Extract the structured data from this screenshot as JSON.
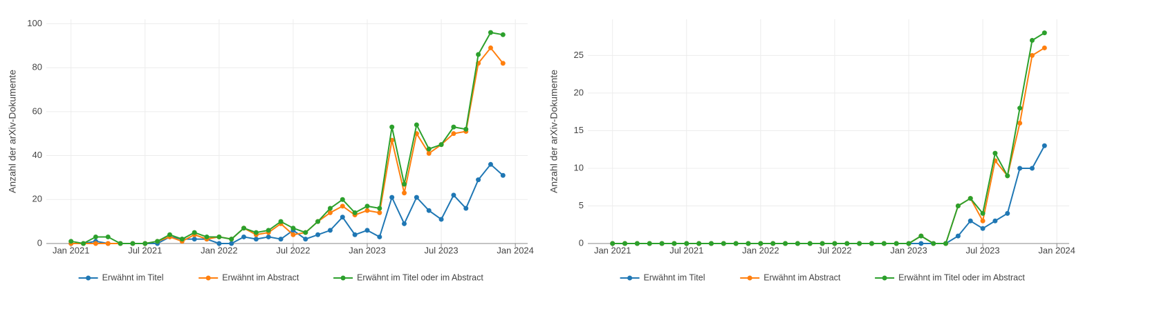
{
  "chart_data": [
    {
      "type": "line",
      "ylabel": "Anzahl der arXiv-Dokumente",
      "x": [
        "2021-01",
        "2021-02",
        "2021-03",
        "2021-04",
        "2021-05",
        "2021-06",
        "2021-07",
        "2021-08",
        "2021-09",
        "2021-10",
        "2021-11",
        "2021-12",
        "2022-01",
        "2022-02",
        "2022-03",
        "2022-04",
        "2022-05",
        "2022-06",
        "2022-07",
        "2022-08",
        "2022-09",
        "2022-10",
        "2022-11",
        "2022-12",
        "2023-01",
        "2023-02",
        "2023-03",
        "2023-04",
        "2023-05",
        "2023-06",
        "2023-07",
        "2023-08",
        "2023-09",
        "2023-10",
        "2023-11",
        "2023-12"
      ],
      "series": [
        {
          "name": "Erwähnt im Titel",
          "color": "#1f77b4",
          "values": [
            0,
            0,
            1,
            0,
            0,
            0,
            0,
            0,
            3,
            2,
            2,
            2,
            0,
            0,
            3,
            2,
            3,
            2,
            6,
            2,
            4,
            6,
            12,
            4,
            6,
            3,
            21,
            9,
            21,
            15,
            11,
            22,
            16,
            29,
            36,
            31
          ]
        },
        {
          "name": "Erwähnt im Abstract",
          "color": "#ff7f0e",
          "values": [
            0,
            0,
            0,
            0,
            0,
            0,
            0,
            1,
            3,
            1,
            4,
            2,
            3,
            2,
            7,
            4,
            5,
            9,
            4,
            5,
            10,
            14,
            17,
            13,
            15,
            14,
            47,
            23,
            50,
            41,
            45,
            50,
            51,
            82,
            89,
            82
          ]
        },
        {
          "name": "Erwähnt im Titel oder im Abstract",
          "color": "#2ca02c",
          "values": [
            1,
            0,
            3,
            3,
            0,
            0,
            0,
            1,
            4,
            2,
            5,
            3,
            3,
            2,
            7,
            5,
            6,
            10,
            7,
            5,
            10,
            16,
            20,
            14,
            17,
            16,
            53,
            27,
            54,
            43,
            45,
            53,
            52,
            86,
            96,
            95
          ]
        }
      ],
      "xlim": [
        "2020-11",
        "2024-02"
      ],
      "xticks": [
        {
          "value": "2021-01",
          "label": "Jan 2021"
        },
        {
          "value": "2021-07",
          "label": "Jul 2021"
        },
        {
          "value": "2022-01",
          "label": "Jan 2022"
        },
        {
          "value": "2022-07",
          "label": "Jul 2022"
        },
        {
          "value": "2023-01",
          "label": "Jan 2023"
        },
        {
          "value": "2023-07",
          "label": "Jul 2023"
        },
        {
          "value": "2024-01",
          "label": "Jan 2024"
        }
      ],
      "ylim": [
        0,
        102
      ],
      "yticks": [
        0,
        20,
        40,
        60,
        80,
        100
      ],
      "grid": true,
      "legend": "bottom"
    },
    {
      "type": "line",
      "ylabel": "Anzahl der arXiv-Dokumente",
      "x": [
        "2021-01",
        "2021-02",
        "2021-03",
        "2021-04",
        "2021-05",
        "2021-06",
        "2021-07",
        "2021-08",
        "2021-09",
        "2021-10",
        "2021-11",
        "2021-12",
        "2022-01",
        "2022-02",
        "2022-03",
        "2022-04",
        "2022-05",
        "2022-06",
        "2022-07",
        "2022-08",
        "2022-09",
        "2022-10",
        "2022-11",
        "2022-12",
        "2023-01",
        "2023-02",
        "2023-03",
        "2023-04",
        "2023-05",
        "2023-06",
        "2023-07",
        "2023-08",
        "2023-09",
        "2023-10",
        "2023-11",
        "2023-12"
      ],
      "series": [
        {
          "name": "Erwähnt im Titel",
          "color": "#1f77b4",
          "values": [
            0,
            0,
            0,
            0,
            0,
            0,
            0,
            0,
            0,
            0,
            0,
            0,
            0,
            0,
            0,
            0,
            0,
            0,
            0,
            0,
            0,
            0,
            0,
            0,
            0,
            0,
            0,
            0,
            1,
            3,
            2,
            3,
            4,
            10,
            10,
            13
          ]
        },
        {
          "name": "Erwähnt im Abstract",
          "color": "#ff7f0e",
          "values": [
            0,
            0,
            0,
            0,
            0,
            0,
            0,
            0,
            0,
            0,
            0,
            0,
            0,
            0,
            0,
            0,
            0,
            0,
            0,
            0,
            0,
            0,
            0,
            0,
            0,
            1,
            0,
            0,
            5,
            6,
            3,
            11,
            9,
            16,
            25,
            26
          ]
        },
        {
          "name": "Erwähnt im Titel oder im Abstract",
          "color": "#2ca02c",
          "values": [
            0,
            0,
            0,
            0,
            0,
            0,
            0,
            0,
            0,
            0,
            0,
            0,
            0,
            0,
            0,
            0,
            0,
            0,
            0,
            0,
            0,
            0,
            0,
            0,
            0,
            1,
            0,
            0,
            5,
            6,
            4,
            12,
            9,
            18,
            27,
            28
          ]
        }
      ],
      "xlim": [
        "2020-11",
        "2024-02"
      ],
      "xticks": [
        {
          "value": "2021-01",
          "label": "Jan 2021"
        },
        {
          "value": "2021-07",
          "label": "Jul 2021"
        },
        {
          "value": "2022-01",
          "label": "Jan 2022"
        },
        {
          "value": "2022-07",
          "label": "Jul 2022"
        },
        {
          "value": "2023-01",
          "label": "Jan 2023"
        },
        {
          "value": "2023-07",
          "label": "Jul 2023"
        },
        {
          "value": "2024-01",
          "label": "Jan 2024"
        }
      ],
      "ylim": [
        0,
        29.8
      ],
      "yticks": [
        0,
        5,
        10,
        15,
        20,
        25
      ],
      "grid": true,
      "legend": "bottom"
    }
  ]
}
